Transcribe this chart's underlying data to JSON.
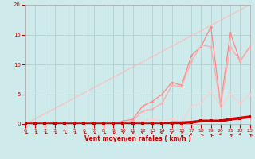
{
  "xlabel": "Vent moyen/en rafales ( km/h )",
  "bg_color": "#ceeaea",
  "grid_color": "#aacccc",
  "xlim": [
    0,
    23
  ],
  "ylim": [
    0,
    20
  ],
  "xticks": [
    0,
    1,
    2,
    3,
    4,
    5,
    6,
    7,
    8,
    9,
    10,
    11,
    12,
    13,
    14,
    15,
    16,
    17,
    18,
    19,
    20,
    21,
    22,
    23
  ],
  "yticks": [
    0,
    5,
    10,
    15,
    20
  ],
  "x": [
    0,
    1,
    2,
    3,
    4,
    5,
    6,
    7,
    8,
    9,
    10,
    11,
    12,
    13,
    14,
    15,
    16,
    17,
    18,
    19,
    20,
    21,
    22,
    23
  ],
  "line_thick_y": [
    0,
    0,
    0,
    0,
    0,
    0,
    0,
    0,
    0,
    0,
    0,
    0,
    0,
    0,
    0,
    0.2,
    0.2,
    0.3,
    0.5,
    0.5,
    0.5,
    0.8,
    1.0,
    1.2
  ],
  "line_mid1_y": [
    0,
    0,
    0,
    0,
    0,
    0,
    0,
    0,
    0,
    0,
    0.2,
    0.5,
    2.2,
    2.5,
    3.5,
    6.5,
    6.3,
    10.5,
    13.2,
    13.0,
    3.0,
    13.0,
    10.5,
    13.0
  ],
  "line_mid2_y": [
    0,
    0,
    0,
    0,
    0,
    0,
    0,
    0,
    0,
    0,
    0.5,
    0.8,
    3.0,
    3.8,
    5.0,
    7.0,
    6.5,
    11.5,
    13.0,
    16.3,
    3.2,
    15.3,
    10.5,
    13.0
  ],
  "line_low_y": [
    0,
    0,
    0,
    0,
    0,
    0,
    0,
    0,
    0,
    0,
    0.0,
    0.3,
    0.5,
    0.8,
    0.5,
    1.0,
    0.2,
    3.0,
    3.5,
    5.5,
    3.0,
    5.0,
    3.5,
    5.0
  ],
  "line_diag_y": [
    0,
    0.87,
    1.74,
    2.61,
    3.48,
    4.35,
    5.22,
    6.09,
    6.96,
    7.83,
    8.7,
    9.57,
    10.43,
    11.3,
    12.17,
    13.04,
    13.91,
    14.78,
    15.65,
    16.52,
    17.39,
    18.26,
    19.13,
    20.0
  ],
  "arrow_angles_deg": [
    -45,
    -45,
    -45,
    -45,
    -45,
    -45,
    -45,
    -45,
    -45,
    -30,
    -10,
    -10,
    10,
    20,
    25,
    5,
    -20,
    -90,
    -135,
    -145,
    -90,
    -135,
    -90,
    -135
  ]
}
